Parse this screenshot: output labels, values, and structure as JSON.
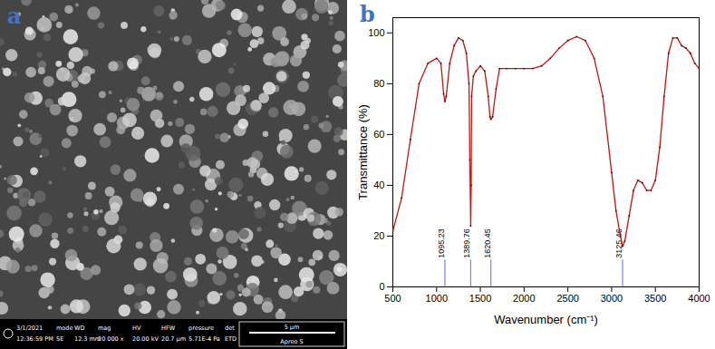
{
  "chart_data": {
    "type": "line",
    "panel_label": "b",
    "x_label": "Wavenumber (cm⁻¹)",
    "y_label": "Transmittance (%)",
    "xlim": [
      500,
      4000
    ],
    "xticks": [
      500,
      1000,
      1500,
      2000,
      2500,
      3000,
      3500,
      4000
    ],
    "ylim": [
      0,
      106
    ],
    "yticks": [
      0,
      20,
      40,
      60,
      80,
      100
    ],
    "color": "#cc1111",
    "x": [
      500,
      600,
      700,
      800,
      900,
      1000,
      1050,
      1080,
      1095,
      1110,
      1150,
      1200,
      1250,
      1300,
      1340,
      1370,
      1380,
      1390,
      1395,
      1400,
      1420,
      1450,
      1500,
      1550,
      1590,
      1610,
      1620,
      1640,
      1680,
      1720,
      1800,
      1900,
      2000,
      2100,
      2200,
      2300,
      2400,
      2500,
      2600,
      2700,
      2800,
      2900,
      3000,
      3050,
      3100,
      3125,
      3150,
      3200,
      3250,
      3300,
      3350,
      3400,
      3450,
      3500,
      3550,
      3600,
      3650,
      3700,
      3750,
      3800,
      3850,
      3900,
      3950,
      4000
    ],
    "values": [
      22,
      35,
      58,
      80,
      88,
      90,
      88,
      76,
      73,
      75,
      88,
      95,
      98,
      97,
      92,
      80,
      50,
      24,
      40,
      75,
      83,
      85,
      87,
      85,
      75,
      67,
      66,
      67,
      78,
      86,
      86,
      86,
      86,
      86,
      87,
      90,
      94,
      97,
      98.5,
      97,
      90,
      75,
      45,
      30,
      20,
      16,
      18,
      28,
      38,
      42,
      41,
      38,
      38,
      42,
      55,
      75,
      92,
      98,
      98,
      95,
      94,
      92,
      88,
      86
    ],
    "peak_markers": {
      "x": [
        1095.23,
        1389.76,
        1620.45,
        3125.46
      ],
      "color": "#7b7bff"
    }
  },
  "sem_panel": {
    "panel_label": "a",
    "info_bar": {
      "date": "3/1/2021",
      "time": "12:36:59 PM",
      "fields": [
        {
          "name": "mode",
          "value": "SE"
        },
        {
          "name": "WD",
          "value": "12.3 mm"
        },
        {
          "name": "mag",
          "value": "20 000 x"
        },
        {
          "name": "HV",
          "value": "20.00 kV"
        },
        {
          "name": "HFW",
          "value": "20.7 µm"
        },
        {
          "name": "pressure",
          "value": "5.71E-4 Pa"
        },
        {
          "name": "det",
          "value": "ETD"
        }
      ],
      "scale_bar": "5 µm",
      "instrument": "Apreo S"
    }
  }
}
